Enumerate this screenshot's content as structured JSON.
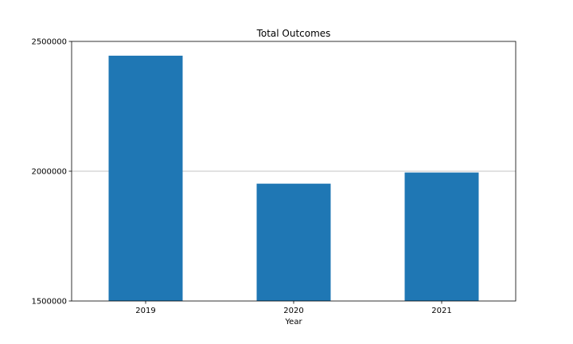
{
  "chart_data": {
    "type": "bar",
    "title": "Total Outcomes",
    "xlabel": "Year",
    "ylabel": "",
    "categories": [
      "2019",
      "2020",
      "2021"
    ],
    "values": [
      2445000,
      1952000,
      1995000
    ],
    "ylim": [
      1500000,
      2500000
    ],
    "yticks": [
      "1500000",
      "2000000",
      "2500000"
    ],
    "grid": "horizontal line at 2000000 only",
    "legend": "none",
    "bar_color": "#1f77b4",
    "gridline_color": "#b0b0b0"
  }
}
